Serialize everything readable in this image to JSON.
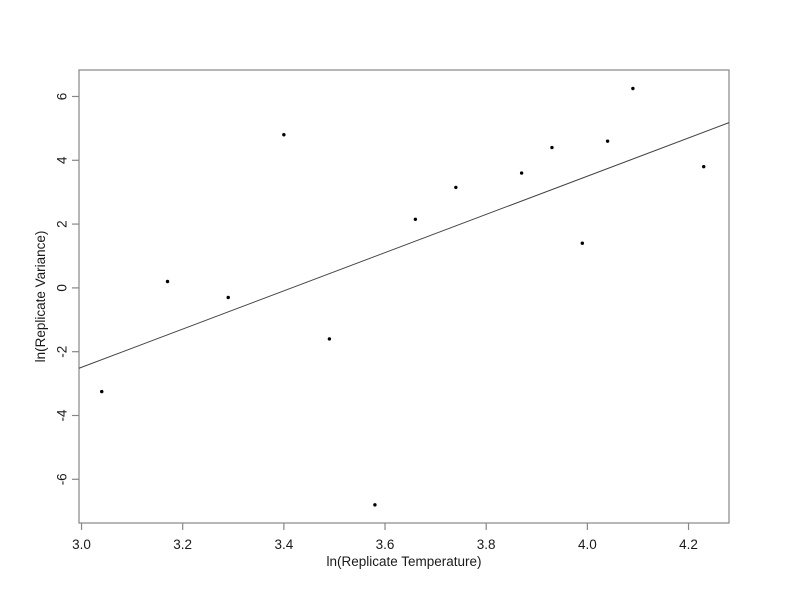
{
  "figure": {
    "background": "#ffffff",
    "box_color": "#878787",
    "tick_color": "#878787",
    "text_color": "#1a1a1a",
    "point_color": "#000000",
    "fit_line_color": "#424242"
  },
  "chart_data": {
    "type": "scatter",
    "title": "",
    "xlabel": "ln(Replicate Temperature)",
    "ylabel": "ln(Replicate Variance)",
    "xlim": [
      2.995,
      4.28
    ],
    "ylim": [
      -7.37,
      6.83
    ],
    "x_ticks": [
      3.0,
      3.2,
      3.4,
      3.6,
      3.8,
      4.0,
      4.2
    ],
    "x_tick_labels": [
      "3.0",
      "3.2",
      "3.4",
      "3.6",
      "3.8",
      "4.0",
      "4.2"
    ],
    "y_ticks": [
      -6,
      -4,
      -2,
      0,
      2,
      4,
      6
    ],
    "y_tick_labels": [
      "-6",
      "-4",
      "-2",
      "0",
      "2",
      "4",
      "6"
    ],
    "grid": false,
    "legend": "none",
    "series": [
      {
        "name": "replicate-points",
        "type": "scatter",
        "points": [
          [
            3.04,
            -3.25
          ],
          [
            3.17,
            0.2
          ],
          [
            3.29,
            -0.3
          ],
          [
            3.4,
            4.8
          ],
          [
            3.49,
            -1.6
          ],
          [
            3.58,
            -6.8
          ],
          [
            3.66,
            2.15
          ],
          [
            3.74,
            3.15
          ],
          [
            3.87,
            3.6
          ],
          [
            3.93,
            4.4
          ],
          [
            3.99,
            1.4
          ],
          [
            4.04,
            4.6
          ],
          [
            4.09,
            6.25
          ],
          [
            4.23,
            3.8
          ]
        ]
      },
      {
        "name": "regression-line",
        "type": "line",
        "points": [
          [
            2.995,
            -2.52
          ],
          [
            4.28,
            5.18
          ]
        ]
      }
    ]
  }
}
